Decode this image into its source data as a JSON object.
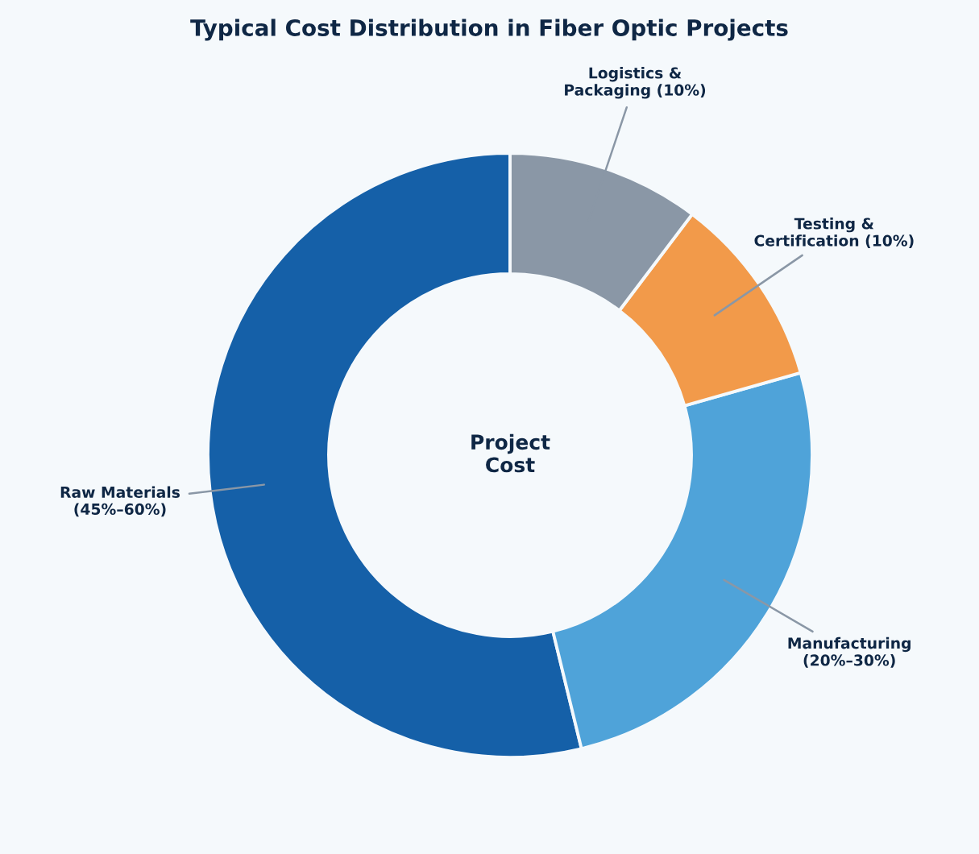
{
  "chart_data": {
    "type": "donut",
    "title": "Typical Cost Distribution in Fiber Optic Projects",
    "categories": [
      "Raw Materials\n(45%–60%)",
      "Manufacturing\n(20%–30%)",
      "Testing &\nCertification (10%)",
      "Logistics &\nPackaging (10%)"
    ],
    "values": [
      53.8,
      25.6,
      10.3,
      10.3
    ],
    "colors": [
      "#1560a8",
      "#4fa3d9",
      "#f29a4a",
      "#8a97a6"
    ],
    "annotations": [
      "Project\nCost"
    ],
    "legend": false
  }
}
